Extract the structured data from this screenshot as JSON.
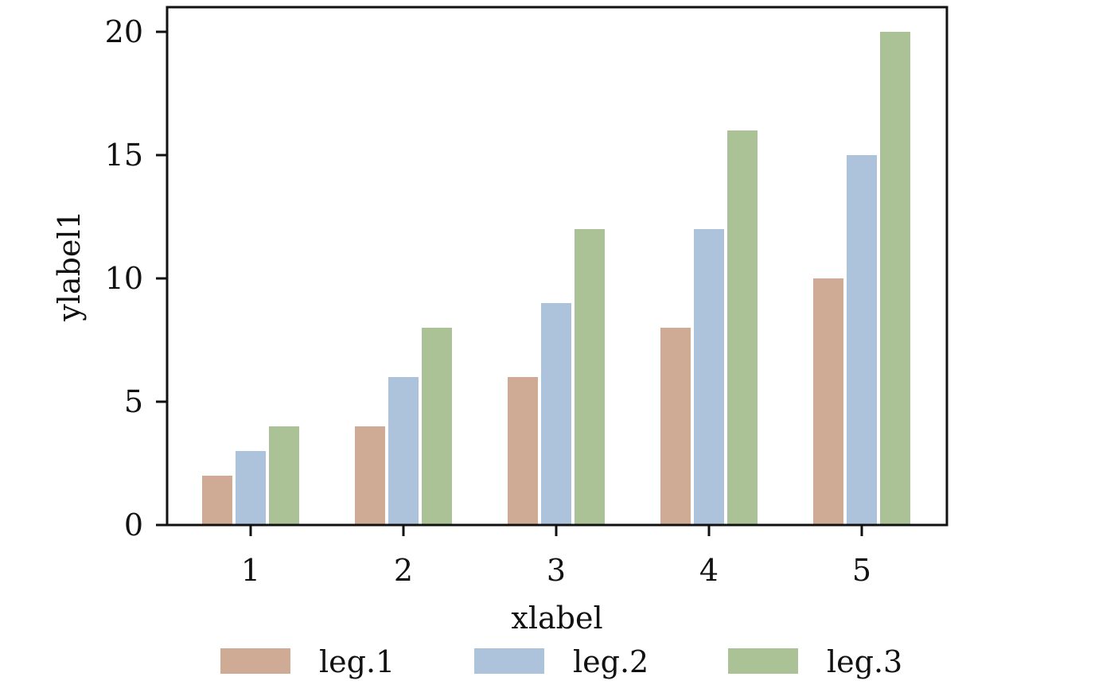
{
  "chart_data": {
    "type": "bar",
    "categories": [
      "1",
      "2",
      "3",
      "4",
      "5"
    ],
    "series": [
      {
        "name": "leg.1",
        "values": [
          2,
          4,
          6,
          8,
          10
        ],
        "color": "#cfab95"
      },
      {
        "name": "leg.2",
        "values": [
          3,
          6,
          9,
          12,
          15
        ],
        "color": "#adc2db"
      },
      {
        "name": "leg.3",
        "values": [
          4,
          8,
          12,
          16,
          20
        ],
        "color": "#abc297"
      }
    ],
    "xlabel": "xlabel",
    "ylabel": "ylabel1",
    "ylim": [
      0,
      21
    ],
    "yticks": [
      0,
      5,
      10,
      15,
      20
    ],
    "grid": false,
    "legend": "bottom-center"
  }
}
